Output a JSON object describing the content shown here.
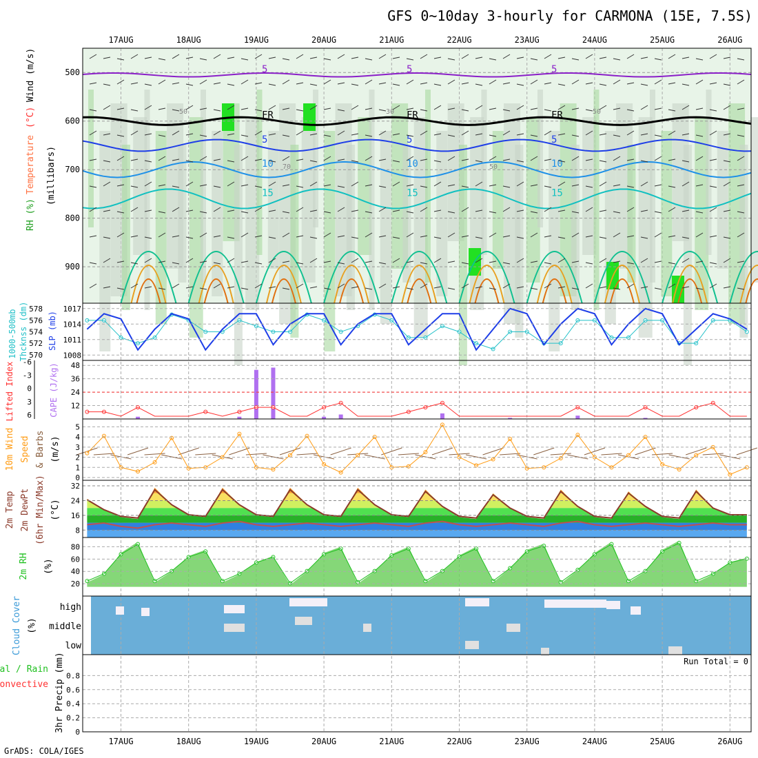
{
  "title": "GFS 0~10day 3-hourly for CARMONA (15E, 7.5S)",
  "footer": "GrADS: COLA/IGES",
  "days": [
    "17AUG",
    "18AUG",
    "19AUG",
    "20AUG",
    "21AUG",
    "22AUG",
    "23AUG",
    "24AUG",
    "25AUG",
    "26AUG"
  ],
  "colors": {
    "slp": "#1e3ee8",
    "thick": "#22c0c8",
    "li": "#ff3030",
    "cape": "#b070f0",
    "wind": "#ff9a10",
    "barb": "#8a6040",
    "temp": "#8b3a2a",
    "rh": "#20c020",
    "cloudbg": "#6aaed8",
    "cloud": "#e0e0e0"
  },
  "chart_data": [
    {
      "type": "contour",
      "name": "upper-air",
      "ylabel_parts": [
        "RH (%)",
        "Temperature",
        "(°C)",
        "Wind (m/s)"
      ],
      "ylabel2": "(millibars)",
      "yticks": [
        500,
        600,
        700,
        800,
        900
      ],
      "ylim": [
        450,
        975
      ],
      "isotherms": [
        {
          "label": "5",
          "value": -5,
          "color": "#8a1ec8"
        },
        {
          "label": "FR",
          "value": 0,
          "color": "#000000"
        },
        {
          "label": "5",
          "value": 5,
          "color": "#1e3ee8"
        },
        {
          "label": "10",
          "value": 10,
          "color": "#1e90e8"
        },
        {
          "label": "15",
          "value": 15,
          "color": "#10c0c0"
        }
      ],
      "rh_labels": [
        "50",
        "70",
        "30",
        "50",
        "50"
      ]
    },
    {
      "type": "line",
      "name": "slp-thickness",
      "ylabel_left": "1000-500mb Thcknss (dm)",
      "ylabel_right": "SLP (mb)",
      "thick_ticks": [
        578,
        576,
        574,
        572,
        570
      ],
      "slp_ticks": [
        1017,
        1014,
        1011,
        1008
      ],
      "thick_lim": [
        569.5,
        578.5
      ],
      "slp_lim": [
        1007.5,
        1017.5
      ],
      "slp": [
        1013,
        1016,
        1015,
        1009,
        1013,
        1016,
        1015,
        1009,
        1013,
        1016,
        1016,
        1010,
        1014,
        1016,
        1016,
        1010,
        1014,
        1016,
        1016,
        1010,
        1013,
        1016,
        1016,
        1009,
        1013,
        1017,
        1016,
        1010,
        1014,
        1017,
        1016,
        1010,
        1014,
        1017,
        1016,
        1010,
        1013,
        1016,
        1015,
        1013
      ],
      "thick": [
        576,
        576,
        573,
        572,
        573,
        577,
        576,
        574,
        574,
        576,
        575,
        574,
        574,
        577,
        576,
        574,
        575,
        577,
        576,
        573,
        573,
        575,
        574,
        572,
        571,
        574,
        574,
        572,
        572,
        576,
        576,
        573,
        573,
        576,
        576,
        572,
        572,
        576,
        576,
        574
      ]
    },
    {
      "type": "bar",
      "name": "li-cape",
      "ylabel_left": "Lifted Index",
      "ylabel_right": "CAPE (J/kg)",
      "li_ticks": [
        "-6",
        "-3",
        "0",
        "3",
        "6"
      ],
      "cape_ticks": [
        48,
        36,
        24,
        12
      ],
      "cape_lim": [
        0,
        50
      ],
      "cape": [
        0,
        0,
        0,
        2,
        0,
        0,
        0,
        0,
        0,
        2,
        44,
        46,
        0,
        0,
        2,
        4,
        0,
        0,
        0,
        0,
        0,
        5,
        0,
        0,
        0,
        1,
        0,
        0,
        0,
        3,
        0,
        0,
        0,
        1,
        0,
        0,
        0,
        0,
        0,
        0
      ],
      "li": [
        5,
        5,
        6,
        4,
        6,
        6,
        6,
        5,
        6,
        5,
        4,
        4,
        6,
        6,
        4,
        3,
        6,
        6,
        6,
        5,
        4,
        3,
        6,
        6,
        6,
        6,
        6,
        6,
        6,
        4,
        6,
        6,
        6,
        4,
        6,
        6,
        4,
        3,
        6,
        6
      ]
    },
    {
      "type": "line",
      "name": "wind",
      "ylabel": [
        "10m Wind",
        "Speed",
        "& Barbs",
        "(m/s)"
      ],
      "yticks": [
        5,
        4,
        3,
        2,
        1,
        0
      ],
      "ylim": [
        0,
        5.5
      ],
      "speed": [
        2.4,
        4.1,
        1.0,
        0.6,
        1.5,
        3.9,
        0.9,
        1.0,
        2.0,
        4.3,
        1.0,
        0.8,
        2.2,
        4.1,
        1.3,
        0.5,
        2.2,
        4.0,
        1.0,
        1.1,
        2.5,
        5.2,
        2.0,
        1.2,
        1.8,
        3.8,
        0.9,
        1.0,
        1.9,
        4.2,
        2.0,
        1.0,
        2.2,
        4.0,
        1.3,
        0.8,
        2.2,
        3.0,
        0.3,
        1.0
      ]
    },
    {
      "type": "area",
      "name": "temperature",
      "ylabel": [
        "2m Temp",
        "2m DewPt",
        "(6hr Min/Max)",
        "(°C)"
      ],
      "yticks": [
        32,
        24,
        16,
        8
      ],
      "ylim": [
        4,
        35
      ],
      "temp": [
        25,
        19,
        15,
        14,
        31,
        22,
        16,
        15,
        31,
        22,
        16,
        15,
        31,
        22,
        16,
        15,
        31,
        22,
        16,
        15,
        30,
        21,
        15,
        14,
        28,
        20,
        15,
        14,
        30,
        21,
        15,
        14,
        29,
        21,
        15,
        14,
        30,
        20,
        16,
        16
      ],
      "dewpt": [
        10,
        11,
        9,
        8,
        10,
        11,
        10,
        9,
        11,
        12,
        10,
        9,
        10,
        11,
        10,
        9,
        10,
        11,
        10,
        9,
        11,
        12,
        10,
        9,
        10,
        11,
        10,
        9,
        11,
        12,
        10,
        9,
        10,
        11,
        10,
        9,
        10,
        11,
        10,
        10
      ]
    },
    {
      "type": "area",
      "name": "rh",
      "ylabel": [
        "2m RH",
        "(%)"
      ],
      "yticks": [
        80,
        60,
        40,
        20
      ],
      "ylim": [
        0,
        95
      ],
      "rh": [
        22,
        35,
        70,
        88,
        22,
        40,
        65,
        75,
        22,
        35,
        55,
        65,
        18,
        40,
        70,
        80,
        20,
        40,
        68,
        80,
        22,
        40,
        66,
        80,
        22,
        45,
        75,
        85,
        20,
        42,
        70,
        88,
        22,
        40,
        75,
        90,
        22,
        35,
        55,
        62
      ]
    },
    {
      "type": "cloud",
      "name": "cloud",
      "ylabel": [
        "Cloud Cover",
        "(%)"
      ],
      "levels": [
        "high",
        "middle",
        "low"
      ]
    },
    {
      "type": "bar",
      "name": "precip",
      "ylabel": [
        "3hr Precip (mm)"
      ],
      "legend": [
        "Total / Rain",
        "Convective"
      ],
      "yticks": [
        "0.8",
        "0.6",
        "0.4",
        "0.2",
        "0"
      ],
      "run_total": "Run Total = 0"
    }
  ]
}
